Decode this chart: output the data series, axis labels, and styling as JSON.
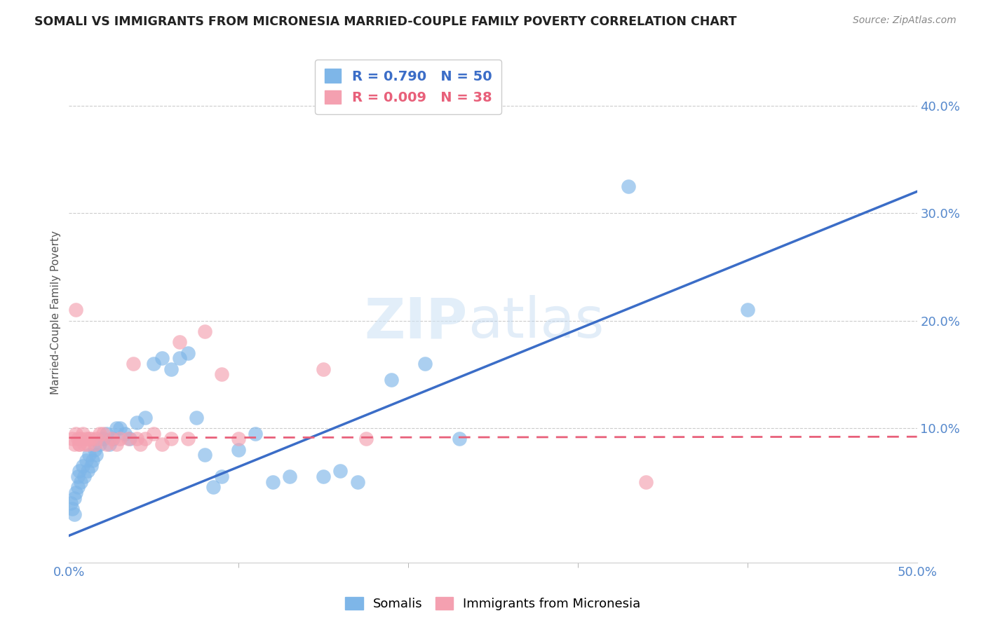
{
  "title": "SOMALI VS IMMIGRANTS FROM MICRONESIA MARRIED-COUPLE FAMILY POVERTY CORRELATION CHART",
  "source": "Source: ZipAtlas.com",
  "ylabel": "Married-Couple Family Poverty",
  "xlim": [
    0.0,
    0.5
  ],
  "ylim": [
    -0.025,
    0.44
  ],
  "xtick_minor_vals": [
    0.1,
    0.2,
    0.3,
    0.4
  ],
  "xtick_edge_labels": [
    "0.0%",
    "50.0%"
  ],
  "xtick_edge_vals": [
    0.0,
    0.5
  ],
  "ytick_labels": [
    "10.0%",
    "20.0%",
    "30.0%",
    "40.0%"
  ],
  "ytick_vals": [
    0.1,
    0.2,
    0.3,
    0.4
  ],
  "somali_color": "#7eb6e8",
  "micronesia_color": "#f4a0b0",
  "somali_R": 0.79,
  "somali_N": 50,
  "micronesia_R": 0.009,
  "micronesia_N": 38,
  "trend_somali_color": "#3b6dc7",
  "trend_micronesia_color": "#e8607a",
  "watermark_zip": "ZIP",
  "watermark_atlas": "atlas",
  "somali_x": [
    0.001,
    0.002,
    0.003,
    0.004,
    0.005,
    0.005,
    0.006,
    0.007,
    0.008,
    0.009,
    0.01,
    0.011,
    0.012,
    0.013,
    0.014,
    0.015,
    0.016,
    0.018,
    0.02,
    0.022,
    0.024,
    0.026,
    0.028,
    0.03,
    0.033,
    0.036,
    0.04,
    0.045,
    0.05,
    0.055,
    0.06,
    0.065,
    0.07,
    0.075,
    0.08,
    0.085,
    0.09,
    0.1,
    0.11,
    0.12,
    0.13,
    0.15,
    0.16,
    0.17,
    0.19,
    0.21,
    0.23,
    0.33,
    0.4,
    0.003
  ],
  "somali_y": [
    0.03,
    0.025,
    0.035,
    0.04,
    0.055,
    0.045,
    0.06,
    0.05,
    0.065,
    0.055,
    0.07,
    0.06,
    0.075,
    0.065,
    0.07,
    0.08,
    0.075,
    0.085,
    0.09,
    0.095,
    0.085,
    0.09,
    0.1,
    0.1,
    0.095,
    0.09,
    0.105,
    0.11,
    0.16,
    0.165,
    0.155,
    0.165,
    0.17,
    0.11,
    0.075,
    0.045,
    0.055,
    0.08,
    0.095,
    0.05,
    0.055,
    0.055,
    0.06,
    0.05,
    0.145,
    0.16,
    0.09,
    0.325,
    0.21,
    0.02
  ],
  "micronesia_x": [
    0.002,
    0.003,
    0.004,
    0.005,
    0.006,
    0.007,
    0.008,
    0.009,
    0.01,
    0.011,
    0.012,
    0.013,
    0.015,
    0.016,
    0.018,
    0.02,
    0.022,
    0.025,
    0.028,
    0.03,
    0.035,
    0.038,
    0.04,
    0.042,
    0.045,
    0.05,
    0.055,
    0.06,
    0.065,
    0.07,
    0.08,
    0.09,
    0.1,
    0.15,
    0.175,
    0.34,
    0.004,
    0.006
  ],
  "micronesia_y": [
    0.09,
    0.085,
    0.095,
    0.09,
    0.085,
    0.09,
    0.095,
    0.085,
    0.09,
    0.085,
    0.09,
    0.09,
    0.085,
    0.09,
    0.095,
    0.095,
    0.085,
    0.09,
    0.085,
    0.09,
    0.09,
    0.16,
    0.09,
    0.085,
    0.09,
    0.095,
    0.085,
    0.09,
    0.18,
    0.09,
    0.19,
    0.15,
    0.09,
    0.155,
    0.09,
    0.05,
    0.21,
    0.085
  ],
  "background_color": "#ffffff",
  "grid_color": "#cccccc",
  "trend_somali_intercept": 0.0,
  "trend_somali_slope": 0.64,
  "trend_micronesia_intercept": 0.091,
  "trend_micronesia_slope": 0.002
}
